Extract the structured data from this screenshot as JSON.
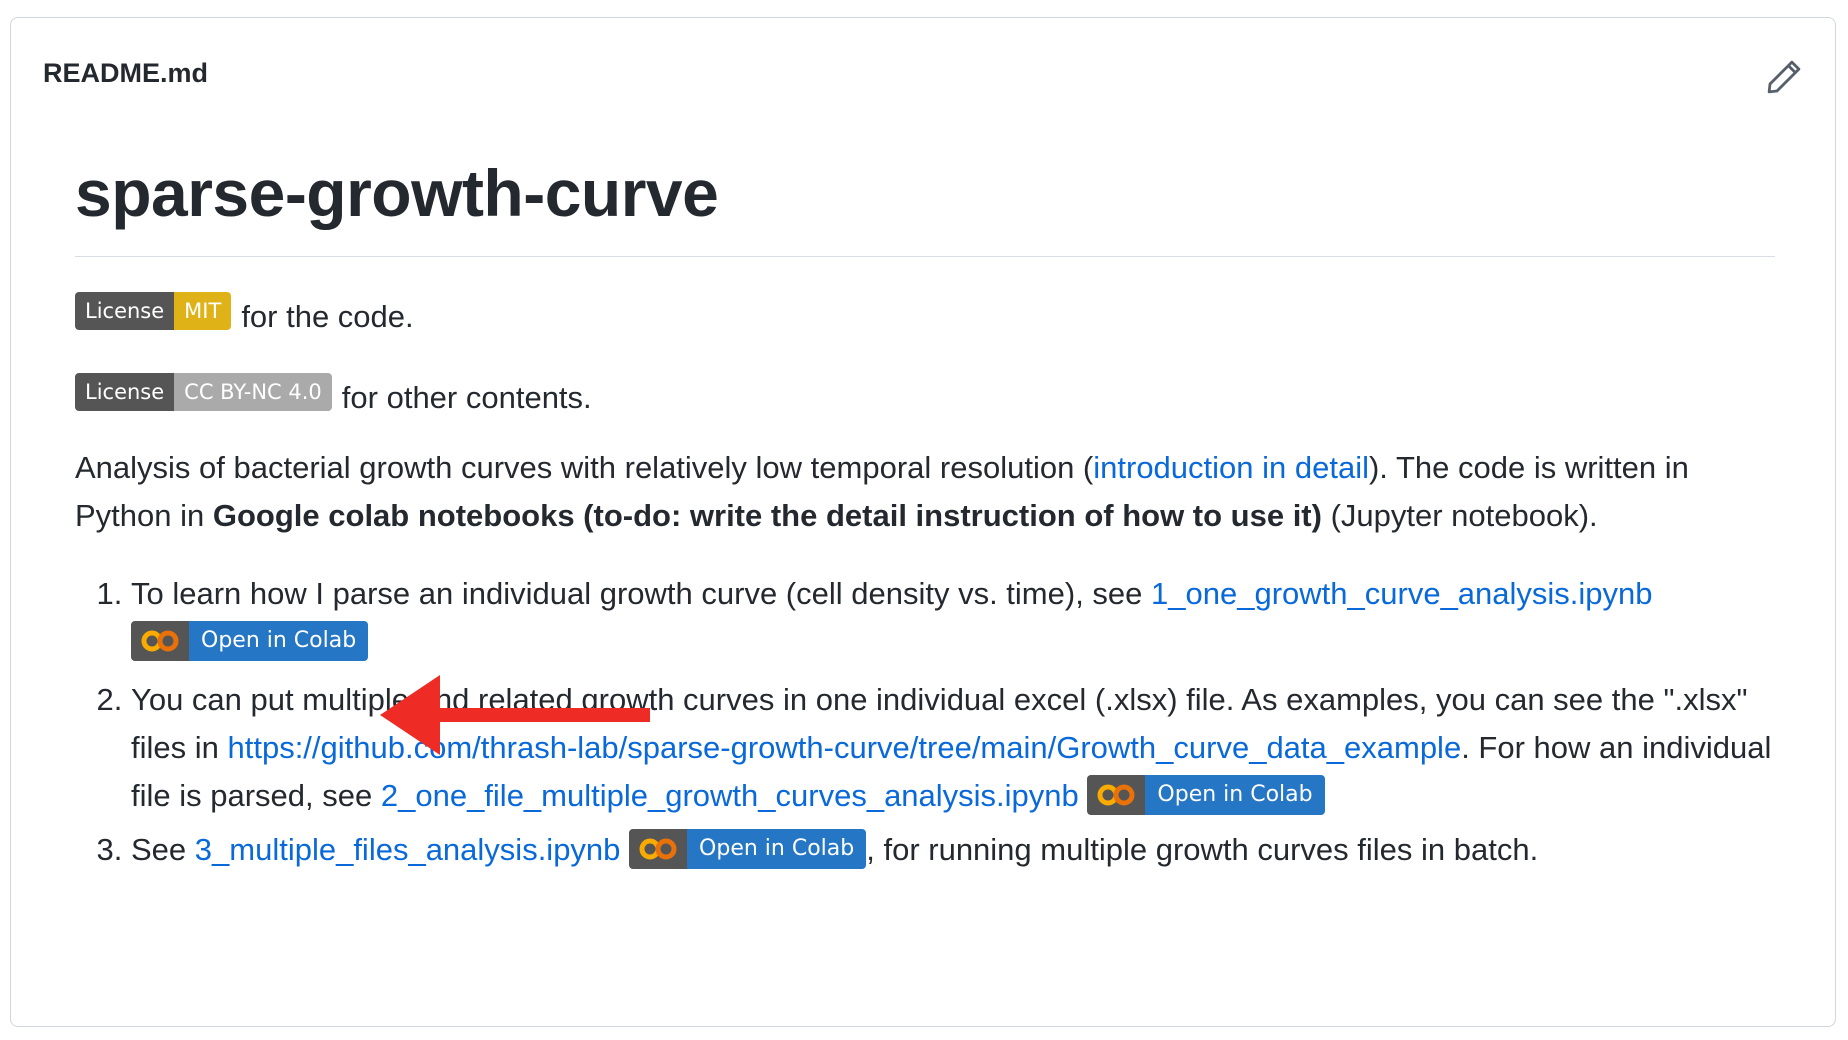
{
  "header": {
    "filename": "README.md",
    "edit_icon": "pencil-icon"
  },
  "readme": {
    "title": "sparse-growth-curve",
    "badges": {
      "mit": {
        "left": "License",
        "right": "MIT",
        "suffix": "for the code."
      },
      "cc": {
        "left": "License",
        "right": "CC BY-NC 4.0",
        "suffix": "for other contents."
      }
    },
    "intro": {
      "t1": "Analysis of bacterial growth curves with relatively low temporal resolution (",
      "link": "introduction in detail",
      "t2": "). The code is written in Python in ",
      "bold": "Google colab notebooks (to-do: write the detail instruction of how to use it)",
      "t3": " (Jupyter notebook)."
    },
    "list": [
      {
        "t1": "To learn how I parse an individual growth curve (cell density vs. time), see ",
        "link": "1_one_growth_curve_analysis.ipynb",
        "colab": "Open in Colab"
      },
      {
        "t1": "You can put multiple and related growth curves in one individual excel (.xlsx) file. As examples, you can see the \".xlsx\" files in ",
        "link1": "https://github.com/thrash-lab/sparse-growth-curve/tree/main/Growth_curve_data_example",
        "t2": ". For how an individual file is parsed, see ",
        "link2": "2_one_file_multiple_growth_curves_analysis.ipynb",
        "colab": "Open in Colab"
      },
      {
        "t1": "See ",
        "link": "3_multiple_files_analysis.ipynb",
        "colab": "Open in Colab",
        "t2": ", for running multiple growth curves files in batch."
      }
    ]
  },
  "colors": {
    "link": "#0969da",
    "mit_badge": "#dfb317",
    "cc_badge": "#aaaaaa",
    "colab_blue": "#2576c4",
    "colab_logo": "#f9ab00",
    "annotation_arrow": "#ee2b24"
  },
  "annotation": {
    "arrow_icon": "red-arrow-icon"
  }
}
